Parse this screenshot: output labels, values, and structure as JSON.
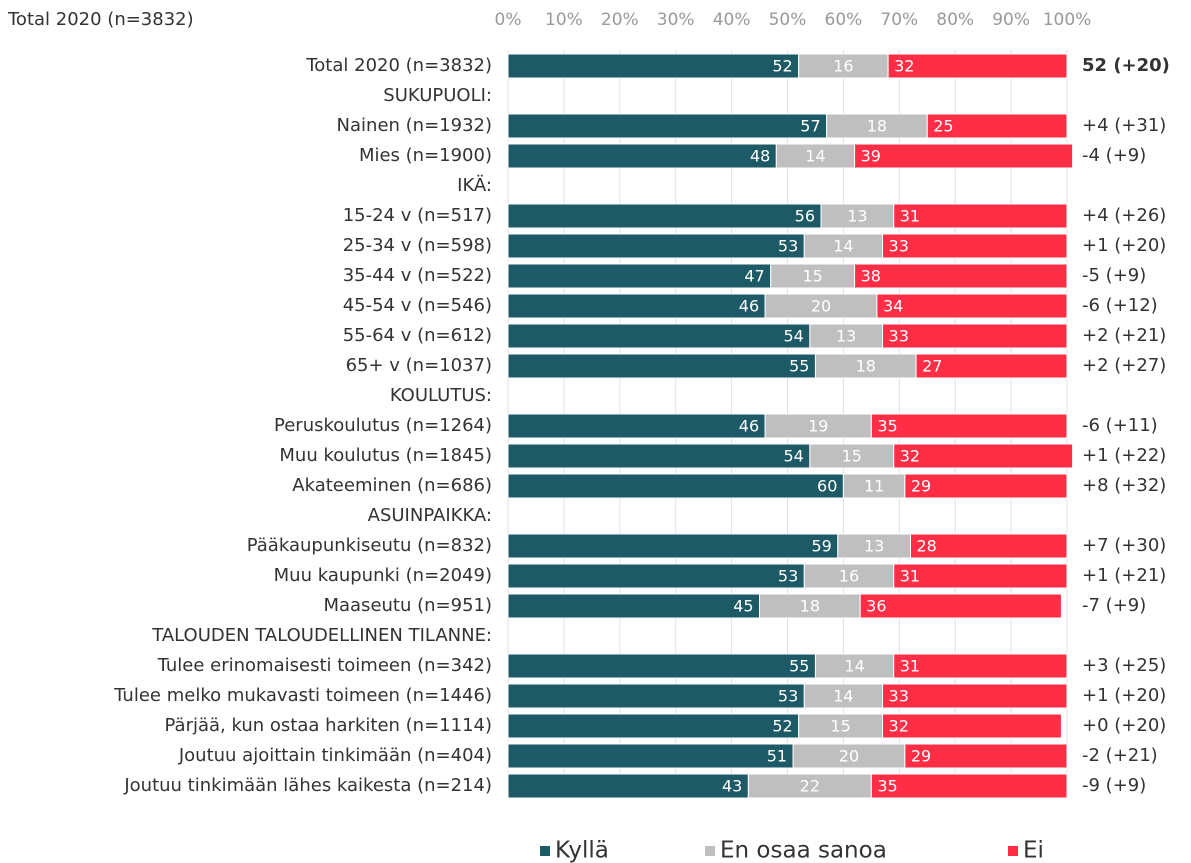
{
  "chart_data": {
    "type": "stacked-barh",
    "title": "Total 2020 (n=3832)",
    "categories": [
      "Total 2020 (n=3832)",
      "SUKUPUOLI:",
      "Nainen (n=1932)",
      "Mies (n=1900)",
      "IKÄ:",
      "15-24 v (n=517)",
      "25-34 v (n=598)",
      "35-44 v (n=522)",
      "45-54 v (n=546)",
      "55-64 v (n=612)",
      "65+ v (n=1037)",
      "KOULUTUS:",
      "Peruskoulutus (n=1264)",
      "Muu koulutus (n=1845)",
      "Akateeminen (n=686)",
      "ASUINPAIKKA:",
      "Pääkaupunkiseutu (n=832)",
      "Muu kaupunki (n=2049)",
      "Maaseutu (n=951)",
      "TALOUDEN TALOUDELLINEN TILANNE:",
      "Tulee erinomaisesti toimeen (n=342)",
      "Tulee melko mukavasti toimeen (n=1446)",
      "Pärjää, kun ostaa harkiten (n=1114)",
      "Joutuu ajoittain tinkimään (n=404)",
      "Joutuu tinkimään lähes kaikesta (n=214)"
    ],
    "series": [
      {
        "name": "Kyllä",
        "color": "#1d5a66",
        "values": [
          52,
          null,
          57,
          48,
          null,
          56,
          53,
          47,
          46,
          54,
          55,
          null,
          46,
          54,
          60,
          null,
          59,
          53,
          45,
          null,
          55,
          53,
          52,
          51,
          43
        ]
      },
      {
        "name": "En osaa sanoa",
        "color": "#bfbfbf",
        "values": [
          16,
          null,
          18,
          14,
          null,
          13,
          14,
          15,
          20,
          13,
          18,
          null,
          19,
          15,
          11,
          null,
          13,
          16,
          18,
          null,
          14,
          14,
          15,
          20,
          22
        ]
      },
      {
        "name": "Ei",
        "color": "#ff2d46",
        "values": [
          32,
          null,
          25,
          39,
          null,
          31,
          33,
          38,
          34,
          33,
          27,
          null,
          35,
          32,
          29,
          null,
          28,
          31,
          36,
          null,
          31,
          33,
          32,
          29,
          35
        ]
      }
    ],
    "annotations": [
      "52 (+20)",
      null,
      "+4 (+31)",
      "-4 (+9)",
      null,
      "+4 (+26)",
      "+1 (+20)",
      "-5 (+9)",
      "-6 (+12)",
      "+2 (+21)",
      "+2 (+27)",
      null,
      "-6 (+11)",
      "+1 (+22)",
      "+8 (+32)",
      null,
      "+7 (+30)",
      "+1 (+21)",
      "-7 (+9)",
      null,
      "+3 (+25)",
      "+1 (+20)",
      "+0 (+20)",
      "-2 (+21)",
      "-9 (+9)"
    ],
    "xlim": [
      0,
      100
    ],
    "xticks": [
      {
        "value": 0,
        "label": "0%"
      },
      {
        "value": 10,
        "label": "10%"
      },
      {
        "value": 20,
        "label": "20%"
      },
      {
        "value": 30,
        "label": "30%"
      },
      {
        "value": 40,
        "label": "40%"
      },
      {
        "value": 50,
        "label": "50%"
      },
      {
        "value": 60,
        "label": "60%"
      },
      {
        "value": 70,
        "label": "70%"
      },
      {
        "value": 80,
        "label": "80%"
      },
      {
        "value": 90,
        "label": "90%"
      },
      {
        "value": 100,
        "label": "100%"
      }
    ],
    "grid": true
  }
}
